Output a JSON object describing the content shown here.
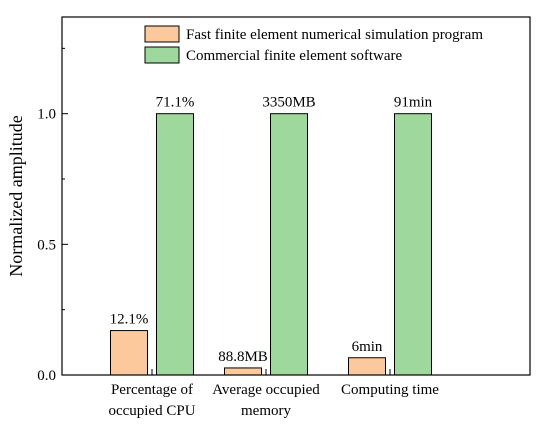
{
  "chart_data": {
    "type": "bar",
    "categories": [
      [
        "Percentage of",
        "occupied CPU"
      ],
      [
        "Average occupied",
        "memory"
      ],
      [
        "Computing time"
      ]
    ],
    "series": [
      {
        "name": "Fast finite element numerical simulation program",
        "color": "#fbc99b",
        "values": [
          0.17,
          0.027,
          0.066
        ],
        "labels": [
          "12.1%",
          "88.8MB",
          "6min"
        ]
      },
      {
        "name": "Commercial finite element software",
        "color": "#9fd89c",
        "values": [
          1.0,
          1.0,
          1.0
        ],
        "labels": [
          "71.1%",
          "3350MB",
          "91min"
        ]
      }
    ],
    "ylabel": "Normalized amplitude",
    "xlabel": "",
    "ylim": [
      0,
      1.37
    ],
    "yticks": [
      {
        "value": 0.0,
        "label": "0.0"
      },
      {
        "value": 0.5,
        "label": "0.5"
      },
      {
        "value": 1.0,
        "label": "1.0"
      }
    ],
    "legend_position": "top-right",
    "grid": false
  }
}
